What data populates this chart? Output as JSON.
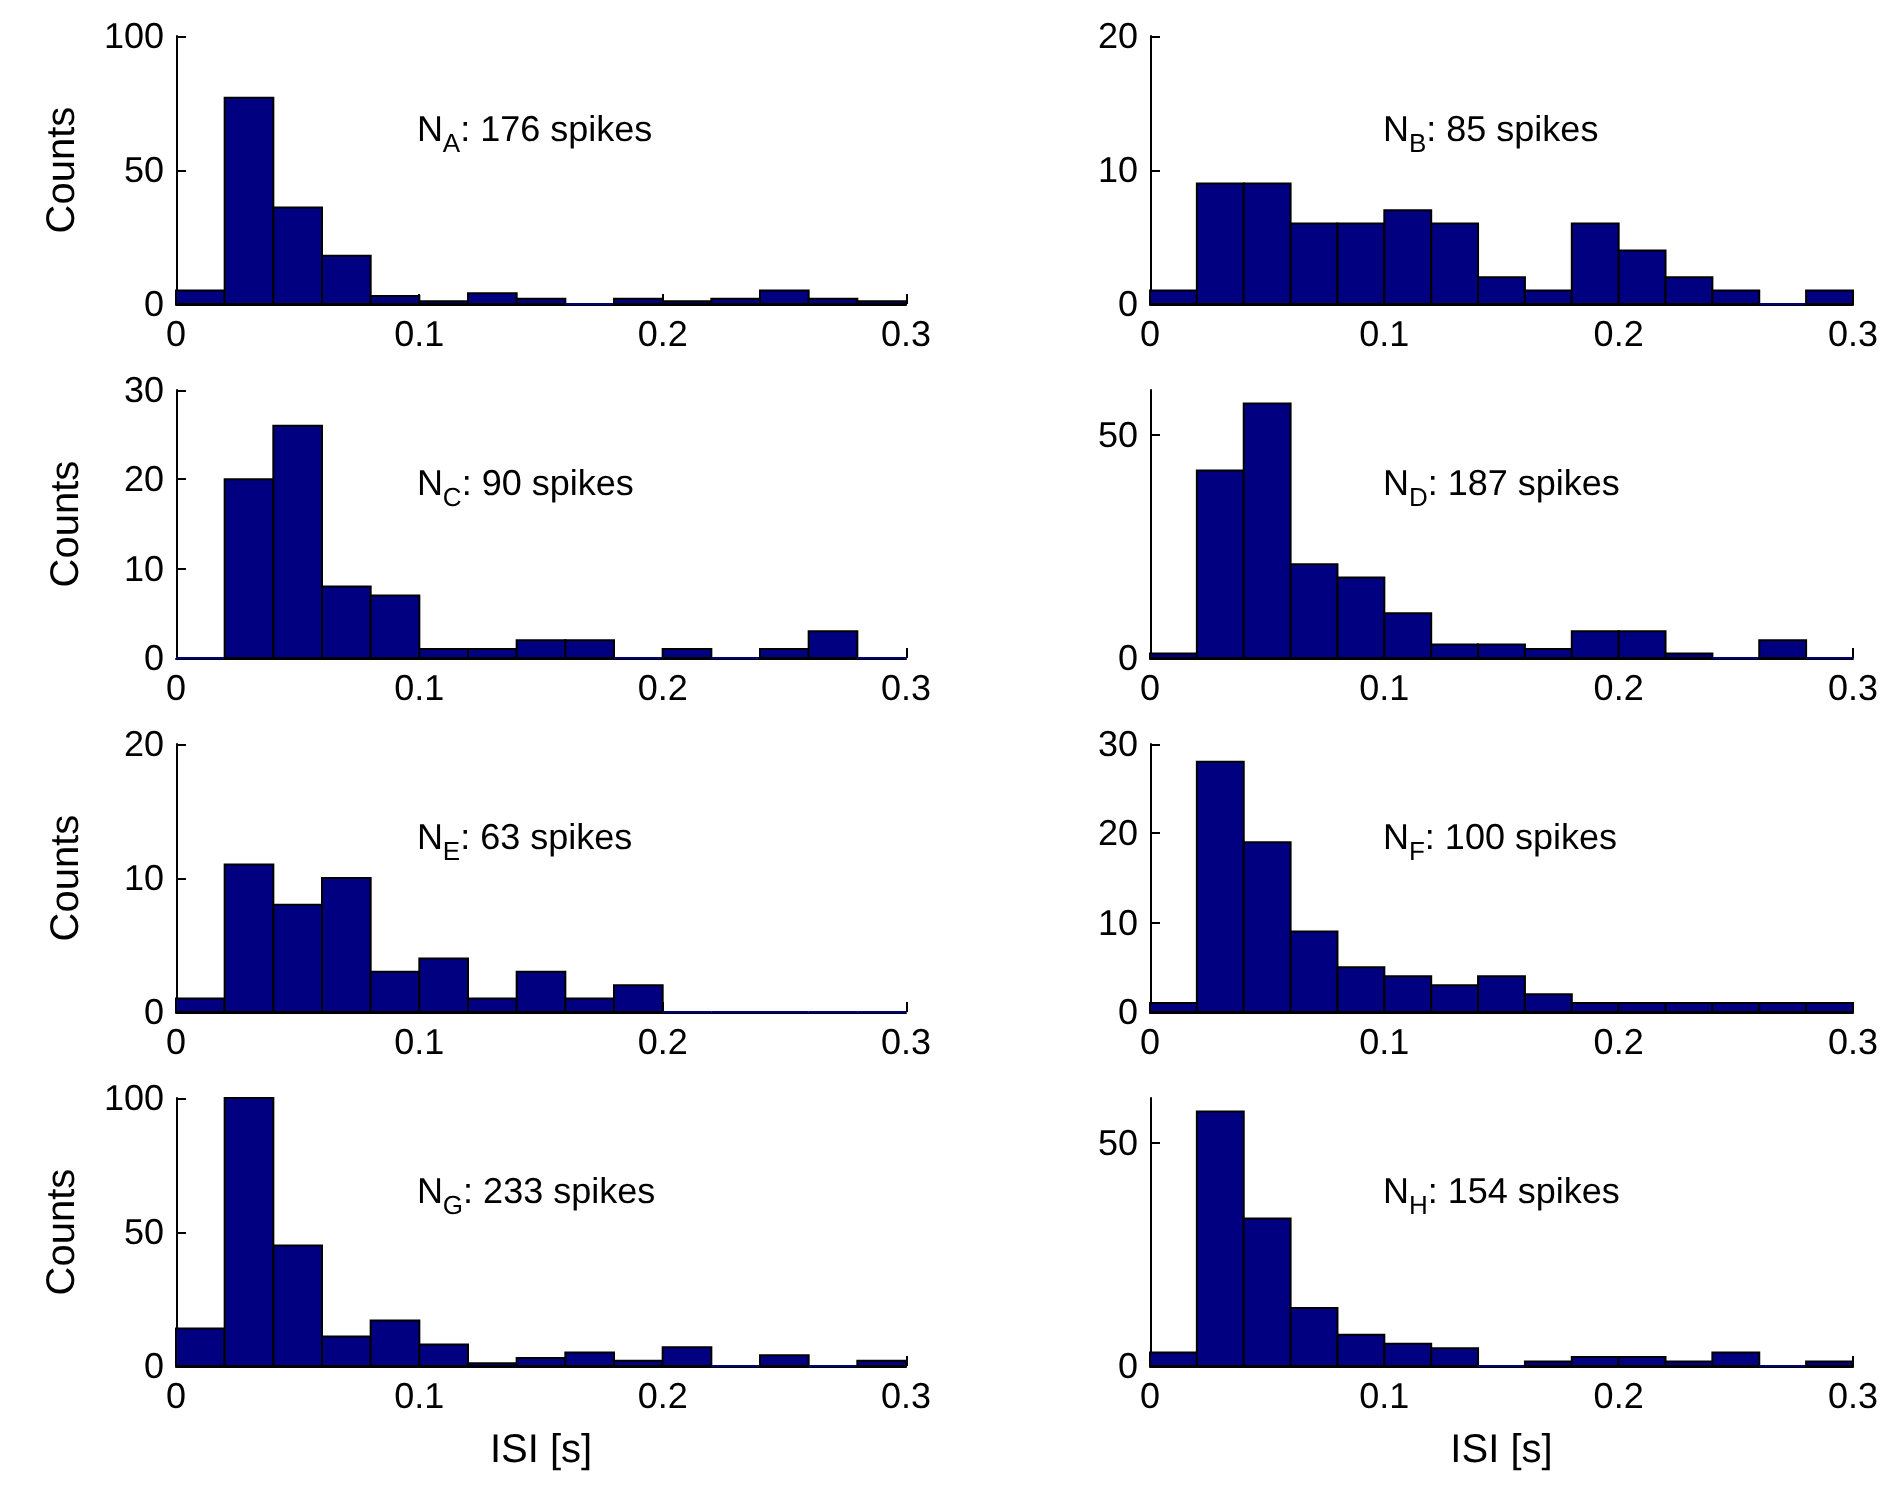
{
  "chart_data": [
    {
      "type": "histogram",
      "ylabel": "Counts",
      "annotations": [
        "N$_{A}$: 176 spikes"
      ],
      "bins": [
        0,
        0.02,
        0.04,
        0.06,
        0.08,
        0.1,
        0.12,
        0.14,
        0.16,
        0.18,
        0.2,
        0.22,
        0.24,
        0.26,
        0.28,
        0.3
      ],
      "values": [
        5,
        77,
        36,
        18,
        3,
        1,
        4,
        2,
        0,
        2,
        1,
        2,
        5,
        2,
        1
      ],
      "color": "#000080",
      "xlim": [
        0,
        0.3
      ],
      "xticks": [
        0,
        0.1,
        0.2,
        0.3
      ],
      "ylim": [
        0,
        100
      ],
      "yticks": [
        0,
        50,
        100
      ]
    },
    {
      "type": "histogram",
      "annotations": [
        "N$_{B}$: 85 spikes"
      ],
      "bins": [
        0,
        0.02,
        0.04,
        0.06,
        0.08,
        0.1,
        0.12,
        0.14,
        0.16,
        0.18,
        0.2,
        0.22,
        0.24,
        0.26,
        0.28,
        0.3
      ],
      "values": [
        1,
        9,
        9,
        6,
        6,
        7,
        6,
        2,
        1,
        6,
        4,
        2,
        1,
        0,
        1
      ],
      "color": "#000080",
      "xlim": [
        0,
        0.3
      ],
      "xticks": [
        0,
        0.1,
        0.2,
        0.3
      ],
      "ylim": [
        0,
        20
      ],
      "yticks": [
        0,
        10,
        20
      ]
    },
    {
      "type": "histogram",
      "ylabel": "Counts",
      "annotations": [
        "N$_{C}$: 90 spikes"
      ],
      "bins": [
        0,
        0.02,
        0.04,
        0.06,
        0.08,
        0.1,
        0.12,
        0.14,
        0.16,
        0.18,
        0.2,
        0.22,
        0.24,
        0.26,
        0.28,
        0.3
      ],
      "values": [
        0,
        20,
        26,
        8,
        7,
        1,
        1,
        2,
        2,
        0,
        1,
        0,
        1,
        3,
        0
      ],
      "color": "#000080",
      "xlim": [
        0,
        0.3
      ],
      "xticks": [
        0,
        0.1,
        0.2,
        0.3
      ],
      "ylim": [
        0,
        30
      ],
      "yticks": [
        0,
        10,
        20,
        30
      ]
    },
    {
      "type": "histogram",
      "annotations": [
        "N$_{D}$: 187 spikes"
      ],
      "bins": [
        0,
        0.02,
        0.04,
        0.06,
        0.08,
        0.1,
        0.12,
        0.14,
        0.16,
        0.18,
        0.2,
        0.22,
        0.24,
        0.26,
        0.28,
        0.3
      ],
      "values": [
        1,
        42,
        57,
        21,
        18,
        10,
        3,
        3,
        2,
        6,
        6,
        1,
        0,
        4,
        0
      ],
      "color": "#000080",
      "xlim": [
        0,
        0.3
      ],
      "xticks": [
        0,
        0.1,
        0.2,
        0.3
      ],
      "ylim": [
        0,
        60
      ],
      "yticks": [
        0,
        50
      ]
    },
    {
      "type": "histogram",
      "ylabel": "Counts",
      "annotations": [
        "N$_{E}$: 63 spikes"
      ],
      "bins": [
        0,
        0.02,
        0.04,
        0.06,
        0.08,
        0.1,
        0.12,
        0.14,
        0.16,
        0.18,
        0.2,
        0.22,
        0.24,
        0.26,
        0.28,
        0.3
      ],
      "values": [
        1,
        11,
        8,
        10,
        3,
        4,
        1,
        3,
        1,
        2,
        0,
        0,
        0,
        0,
        0
      ],
      "color": "#000080",
      "xlim": [
        0,
        0.3
      ],
      "xticks": [
        0,
        0.1,
        0.2,
        0.3
      ],
      "ylim": [
        0,
        20
      ],
      "yticks": [
        0,
        10,
        20
      ]
    },
    {
      "type": "histogram",
      "annotations": [
        "N$_{F}$: 100 spikes"
      ],
      "bins": [
        0,
        0.02,
        0.04,
        0.06,
        0.08,
        0.1,
        0.12,
        0.14,
        0.16,
        0.18,
        0.2,
        0.22,
        0.24,
        0.26,
        0.28,
        0.3
      ],
      "values": [
        1,
        28,
        19,
        9,
        5,
        4,
        3,
        4,
        2,
        1,
        1,
        1,
        1,
        1,
        1
      ],
      "color": "#000080",
      "xlim": [
        0,
        0.3
      ],
      "xticks": [
        0,
        0.1,
        0.2,
        0.3
      ],
      "ylim": [
        0,
        30
      ],
      "yticks": [
        0,
        10,
        20,
        30
      ]
    },
    {
      "type": "histogram",
      "xlabel": "ISI [s]",
      "ylabel": "Counts",
      "annotations": [
        "N$_{G}$: 233 spikes"
      ],
      "bins": [
        0,
        0.02,
        0.04,
        0.06,
        0.08,
        0.1,
        0.12,
        0.14,
        0.16,
        0.18,
        0.2,
        0.22,
        0.24,
        0.26,
        0.28,
        0.3
      ],
      "values": [
        14,
        100,
        45,
        11,
        17,
        8,
        1,
        3,
        5,
        2,
        7,
        0,
        4,
        0,
        2
      ],
      "color": "#000080",
      "xlim": [
        0,
        0.3
      ],
      "xticks": [
        0,
        0.1,
        0.2,
        0.3
      ],
      "ylim": [
        0,
        100
      ],
      "yticks": [
        0,
        50,
        100
      ]
    },
    {
      "type": "histogram",
      "xlabel": "ISI [s]",
      "annotations": [
        "N$_{H}$: 154 spikes"
      ],
      "bins": [
        0,
        0.02,
        0.04,
        0.06,
        0.08,
        0.1,
        0.12,
        0.14,
        0.16,
        0.18,
        0.2,
        0.22,
        0.24,
        0.26,
        0.28,
        0.3
      ],
      "values": [
        3,
        57,
        33,
        13,
        7,
        5,
        4,
        0,
        1,
        2,
        2,
        1,
        3,
        0,
        1
      ],
      "color": "#000080",
      "xlim": [
        0,
        0.3
      ],
      "xticks": [
        0,
        0.1,
        0.2,
        0.3
      ],
      "ylim": [
        0,
        60
      ],
      "yticks": [
        0,
        50
      ]
    }
  ]
}
